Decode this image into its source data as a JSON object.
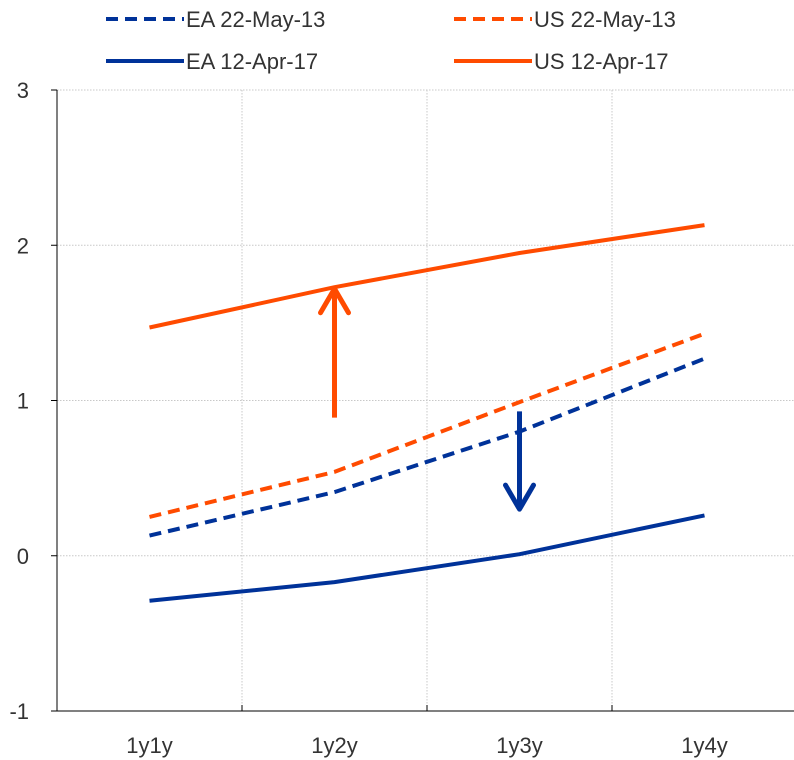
{
  "chart_data": {
    "type": "line",
    "categories": [
      "1y1y",
      "1y2y",
      "1y3y",
      "1y4y"
    ],
    "ylim": [
      -1,
      3
    ],
    "yticks": [
      -1,
      0,
      1,
      2,
      3
    ],
    "grid": true,
    "legend_position": "top",
    "series": [
      {
        "name": "EA 22-May-13",
        "values": [
          0.13,
          0.41,
          0.8,
          1.27
        ],
        "color": "#003299",
        "dash": true
      },
      {
        "name": "US 22-May-13",
        "values": [
          0.25,
          0.54,
          0.99,
          1.43
        ],
        "color": "#ff4b00",
        "dash": true
      },
      {
        "name": "EA 12-Apr-17",
        "values": [
          -0.29,
          -0.17,
          0.01,
          0.26
        ],
        "color": "#003299",
        "dash": false
      },
      {
        "name": "US 12-Apr-17",
        "values": [
          1.47,
          1.73,
          1.95,
          2.13
        ],
        "color": "#ff4b00",
        "dash": false
      }
    ],
    "annotations": [
      {
        "type": "arrow",
        "direction": "up",
        "color": "#ff4b00",
        "x": 1.5,
        "from": 0.89,
        "to": 1.72
      },
      {
        "type": "arrow",
        "direction": "down",
        "color": "#003299",
        "x": 2.5,
        "from": 0.93,
        "to": 0.3
      }
    ]
  }
}
